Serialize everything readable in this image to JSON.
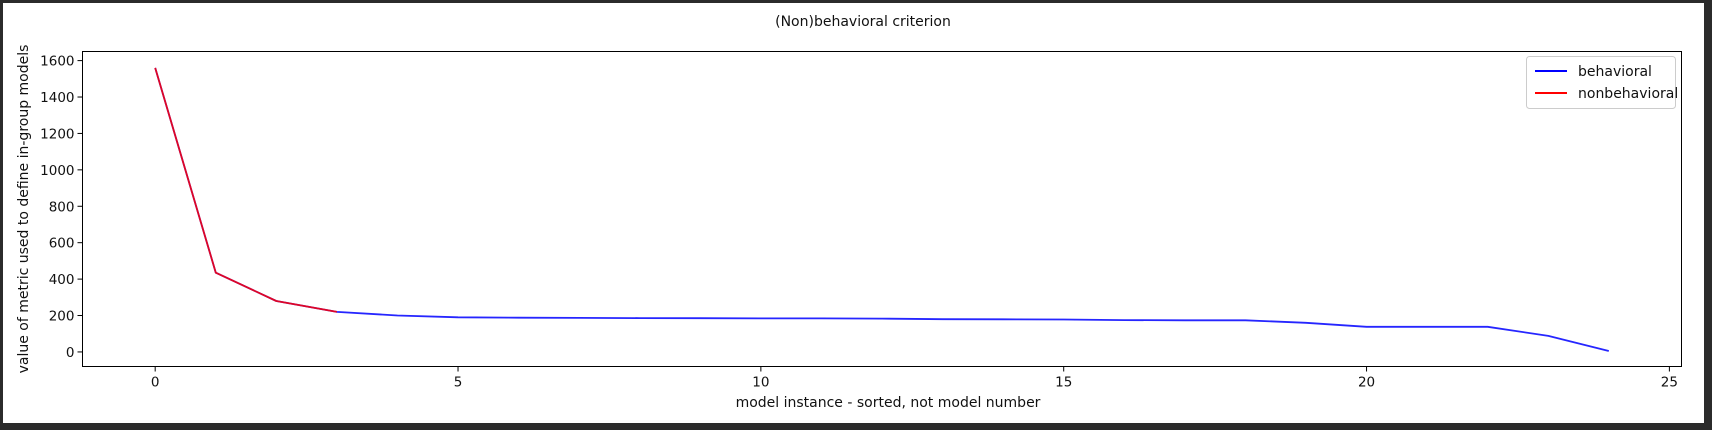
{
  "chart_data": {
    "type": "line",
    "title": "(Non)behavioral criterion",
    "xlabel": "model instance - sorted, not model number",
    "ylabel": "value of metric used to define in-group models",
    "xlim": [
      -1.2,
      25.2
    ],
    "ylim": [
      -80,
      1650
    ],
    "xticks": [
      0,
      5,
      10,
      15,
      20,
      25
    ],
    "yticks": [
      0,
      200,
      400,
      600,
      800,
      1000,
      1200,
      1400,
      1600
    ],
    "grid": false,
    "legend_position": "top-right",
    "series": [
      {
        "name": "behavioral",
        "color": "#0000ff",
        "x": [
          0,
          1,
          2,
          3,
          4,
          5,
          6,
          7,
          8,
          9,
          10,
          11,
          12,
          13,
          14,
          15,
          16,
          17,
          18,
          19,
          20,
          21,
          22,
          23,
          24
        ],
        "y": [
          1560,
          435,
          280,
          220,
          200,
          190,
          188,
          187,
          186,
          185,
          184,
          184,
          183,
          180,
          179,
          178,
          175,
          174,
          174,
          160,
          138,
          138,
          138,
          88,
          5
        ]
      },
      {
        "name": "nonbehavioral",
        "color": "#ff0000",
        "x": [
          0,
          1,
          2,
          3
        ],
        "y": [
          1560,
          435,
          280,
          220
        ]
      }
    ]
  }
}
